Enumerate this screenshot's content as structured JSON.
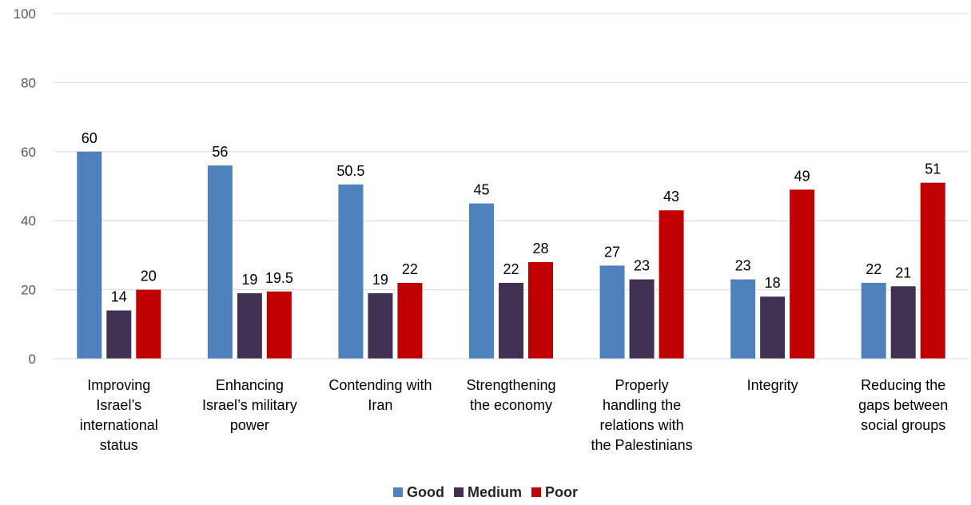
{
  "chart_data": {
    "type": "bar",
    "categories": [
      [
        "Improving",
        "Israel’s",
        "international",
        "status"
      ],
      [
        "Enhancing",
        "Israel’s military",
        "power"
      ],
      [
        "Contending with",
        "Iran"
      ],
      [
        "Strengthening",
        "the economy"
      ],
      [
        "Properly",
        "handling the",
        "relations with",
        "the Palestinians"
      ],
      [
        "Integrity"
      ],
      [
        "Reducing the",
        "gaps between",
        "social groups"
      ]
    ],
    "series": [
      {
        "name": "Good",
        "color": "#4f81bd",
        "values": [
          60,
          56,
          50.5,
          45,
          27,
          23,
          22
        ]
      },
      {
        "name": "Medium",
        "color": "#403152",
        "values": [
          14,
          19,
          19,
          22,
          23,
          18,
          21
        ]
      },
      {
        "name": "Poor",
        "color": "#c00000",
        "values": [
          20,
          19.5,
          22,
          28,
          43,
          49,
          51
        ]
      }
    ],
    "ylim": [
      0,
      100
    ],
    "yticks": [
      0,
      20,
      40,
      60,
      80,
      100
    ],
    "grid": true,
    "legend_position": "bottom"
  }
}
